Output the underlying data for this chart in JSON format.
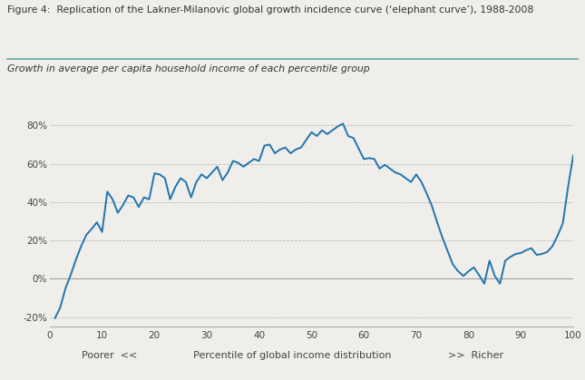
{
  "title": "Figure 4:  Replication of the Lakner-Milanovic global growth incidence curve (‘elephant curve’), 1988-2008",
  "subtitle": "Growth in average per capita household income of each percentile group",
  "xlabel_left": "Poorer  <<",
  "xlabel_center": "Percentile of global income distribution",
  "xlabel_right": ">>  Richer",
  "line_color": "#2175AE",
  "background_color": "#F0EEEA",
  "plot_bg_color": "#F0EEEA",
  "grid_color": "#BBBBBB",
  "title_color": "#333333",
  "subtitle_color": "#333333",
  "separator_color": "#5FA8A0",
  "xlim": [
    0,
    100
  ],
  "ylim": [
    -0.25,
    0.85
  ],
  "xticks": [
    0,
    10,
    20,
    30,
    40,
    50,
    60,
    70,
    80,
    90,
    100
  ],
  "yticks": [
    -0.2,
    0.0,
    0.2,
    0.4,
    0.6,
    0.8
  ],
  "x": [
    1,
    2,
    3,
    4,
    5,
    6,
    7,
    8,
    9,
    10,
    11,
    12,
    13,
    14,
    15,
    16,
    17,
    18,
    19,
    20,
    21,
    22,
    23,
    24,
    25,
    26,
    27,
    28,
    29,
    30,
    31,
    32,
    33,
    34,
    35,
    36,
    37,
    38,
    39,
    40,
    41,
    42,
    43,
    44,
    45,
    46,
    47,
    48,
    49,
    50,
    51,
    52,
    53,
    54,
    55,
    56,
    57,
    58,
    59,
    60,
    61,
    62,
    63,
    64,
    65,
    66,
    67,
    68,
    69,
    70,
    71,
    72,
    73,
    74,
    75,
    76,
    77,
    78,
    79,
    80,
    81,
    82,
    83,
    84,
    85,
    86,
    87,
    88,
    89,
    90,
    91,
    92,
    93,
    94,
    95,
    96,
    97,
    98,
    99,
    100
  ],
  "y": [
    -0.205,
    -0.15,
    -0.05,
    0.02,
    0.1,
    0.17,
    0.23,
    0.26,
    0.295,
    0.245,
    0.455,
    0.415,
    0.345,
    0.385,
    0.435,
    0.425,
    0.375,
    0.425,
    0.415,
    0.55,
    0.545,
    0.525,
    0.415,
    0.48,
    0.525,
    0.505,
    0.425,
    0.505,
    0.545,
    0.525,
    0.555,
    0.585,
    0.515,
    0.555,
    0.615,
    0.605,
    0.585,
    0.605,
    0.625,
    0.615,
    0.695,
    0.7,
    0.655,
    0.675,
    0.685,
    0.655,
    0.675,
    0.685,
    0.725,
    0.765,
    0.745,
    0.775,
    0.755,
    0.775,
    0.795,
    0.81,
    0.745,
    0.735,
    0.68,
    0.625,
    0.63,
    0.625,
    0.575,
    0.595,
    0.575,
    0.555,
    0.545,
    0.525,
    0.505,
    0.545,
    0.505,
    0.445,
    0.38,
    0.295,
    0.215,
    0.145,
    0.075,
    0.04,
    0.015,
    0.04,
    0.06,
    0.02,
    -0.025,
    0.095,
    0.015,
    -0.025,
    0.095,
    0.115,
    0.13,
    0.135,
    0.15,
    0.16,
    0.125,
    0.13,
    0.14,
    0.17,
    0.225,
    0.29,
    0.48,
    0.645
  ]
}
